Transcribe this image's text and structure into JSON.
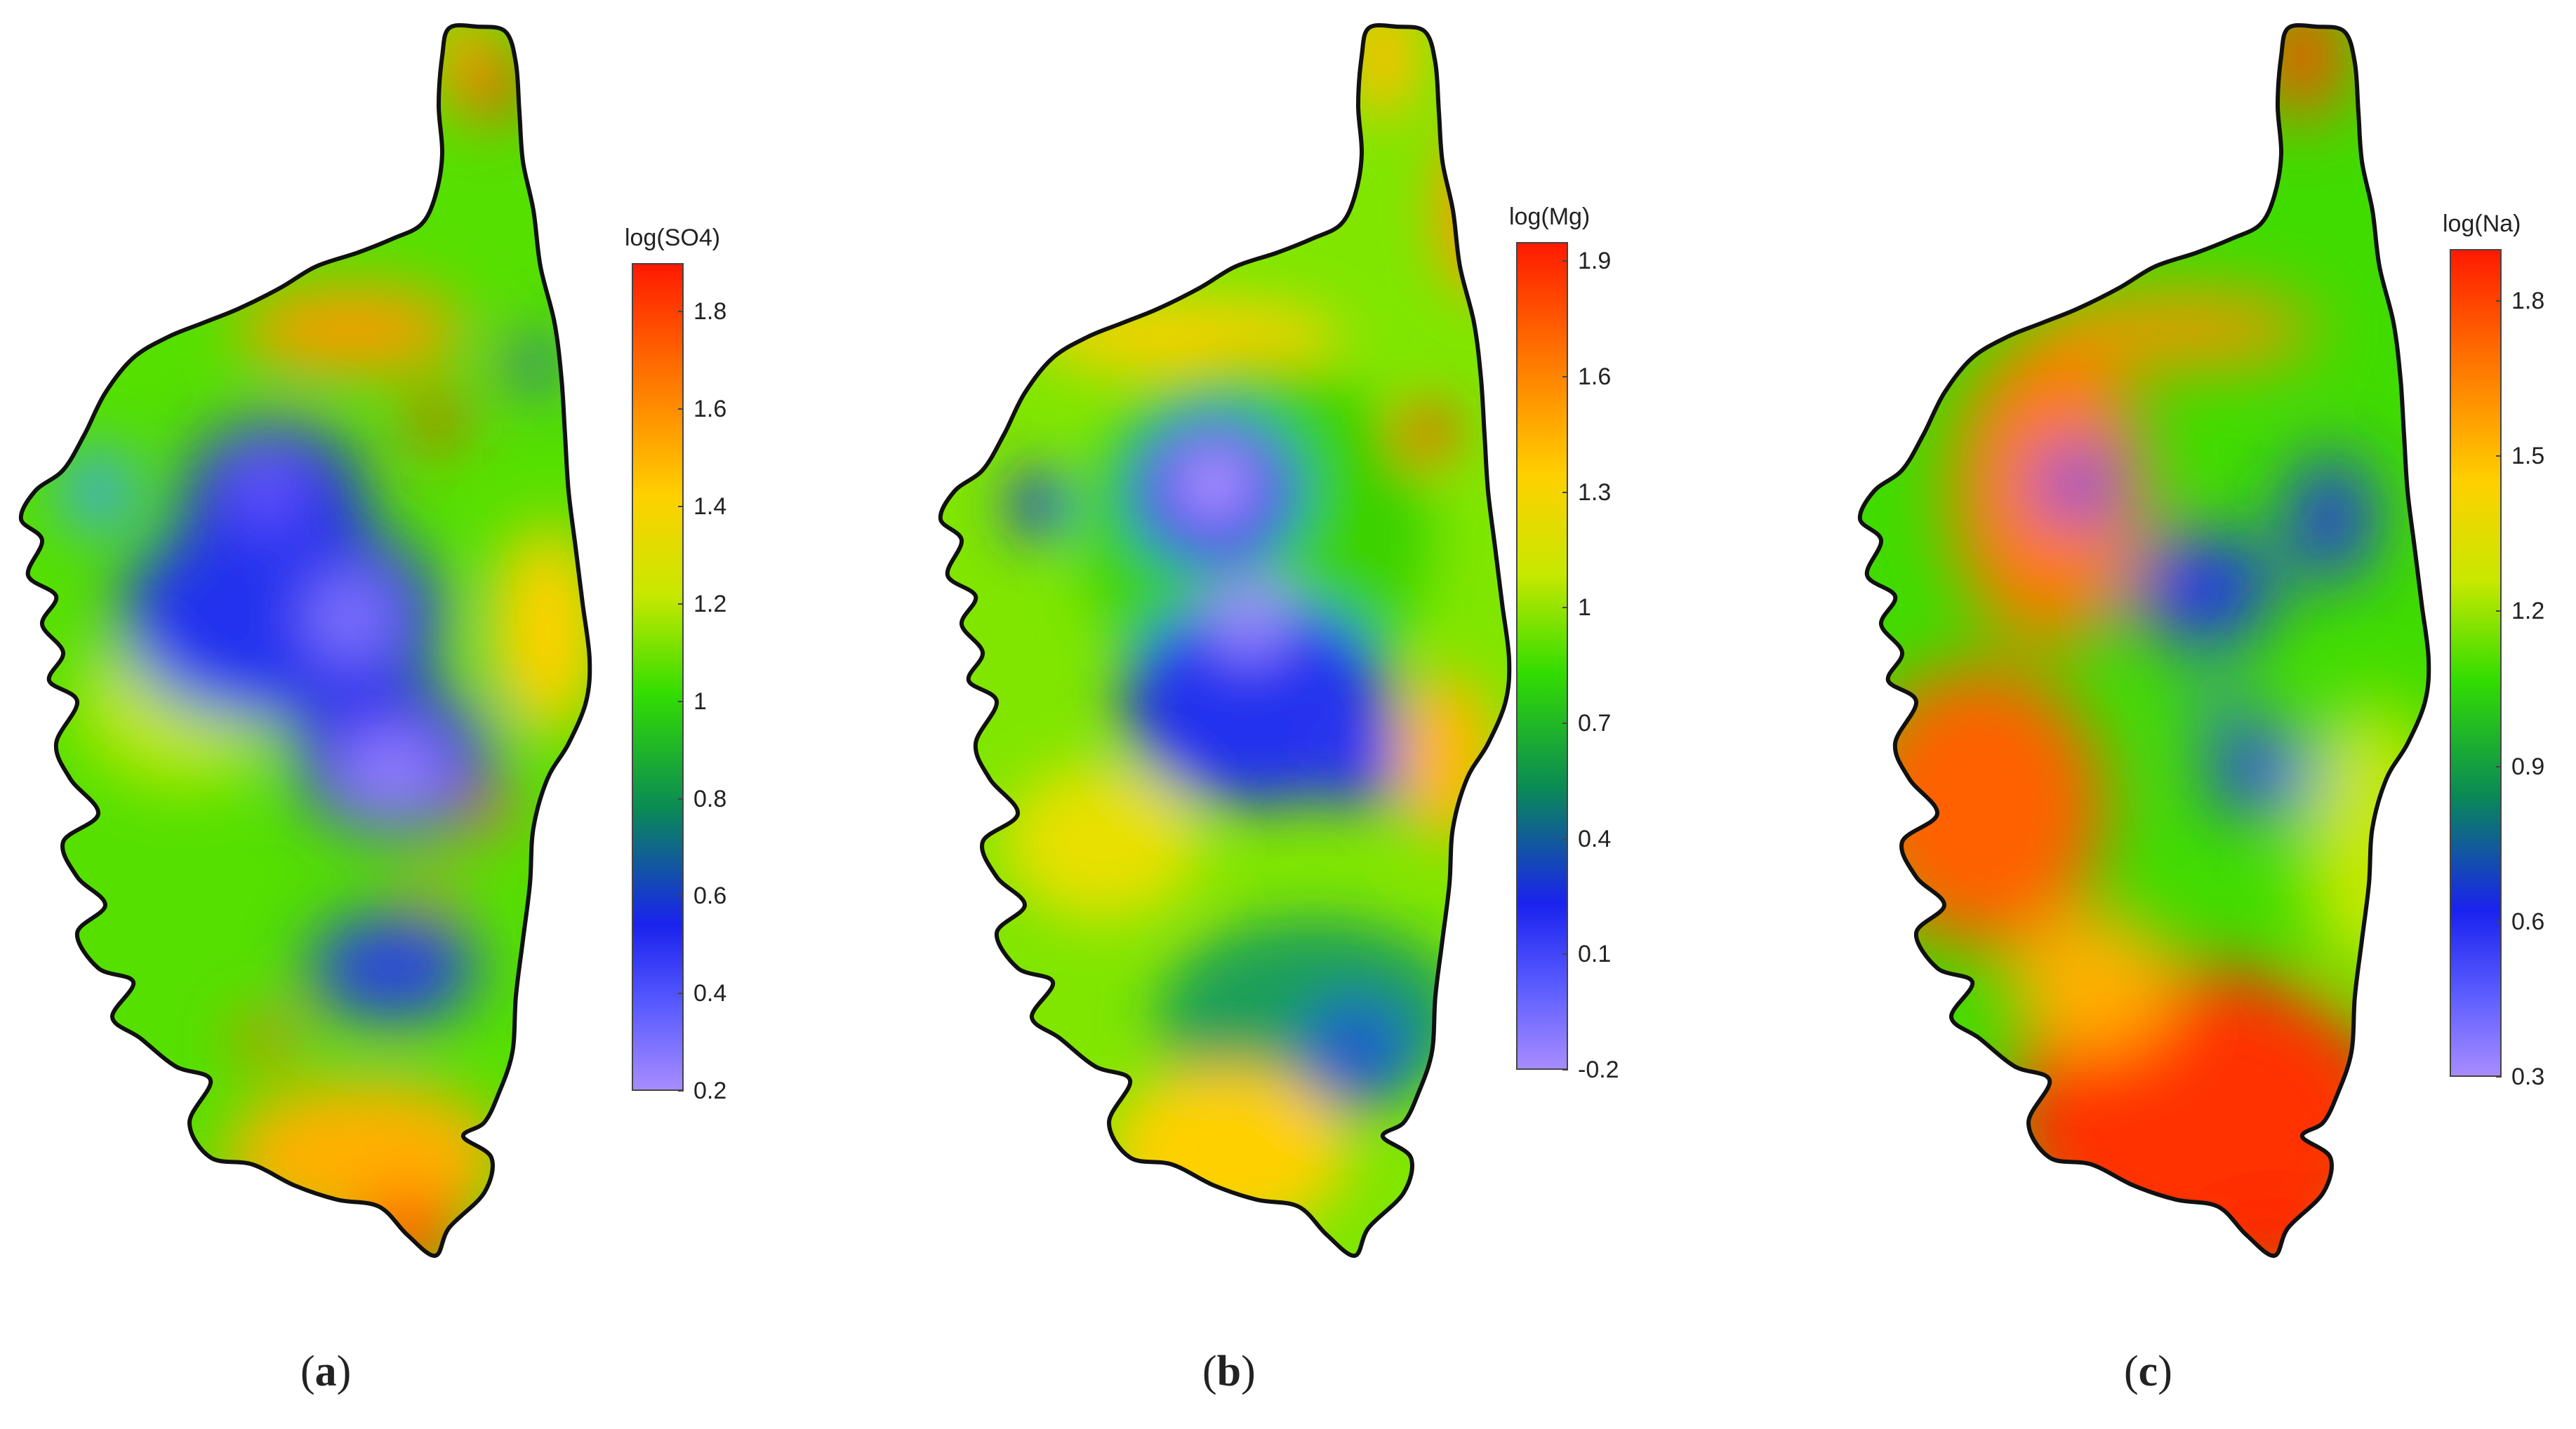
{
  "panels": [
    {
      "id": "a",
      "caption_open": "(",
      "caption_letter": "a",
      "caption_close": ")",
      "legend_title": "log(SO4)",
      "ticks": [
        "1.8",
        "1.6",
        "1.4",
        "1.2",
        "1",
        "0.8",
        "0.6",
        "0.4",
        "0.2"
      ],
      "range": [
        0.2,
        1.9
      ]
    },
    {
      "id": "b",
      "caption_open": "(",
      "caption_letter": "b",
      "caption_close": ")",
      "legend_title": "log(Mg)",
      "ticks": [
        "1.9",
        "1.6",
        "1.3",
        "1",
        "0.7",
        "0.4",
        "0.1",
        "-0.2"
      ],
      "range": [
        -0.2,
        1.95
      ]
    },
    {
      "id": "c",
      "caption_open": "(",
      "caption_letter": "c",
      "caption_close": ")",
      "legend_title": "log(Na)",
      "ticks": [
        "1.8",
        "1.5",
        "1.2",
        "0.9",
        "0.6",
        "0.3"
      ],
      "range": [
        0.3,
        1.9
      ]
    }
  ],
  "colors": {
    "high": "#ff1a00",
    "mid_high": "#ffd000",
    "mid": "#33dd00",
    "mid_low": "#0a8a55",
    "low": "#1a22ee",
    "lowest": "#a88cff",
    "outline": "#111111"
  }
}
